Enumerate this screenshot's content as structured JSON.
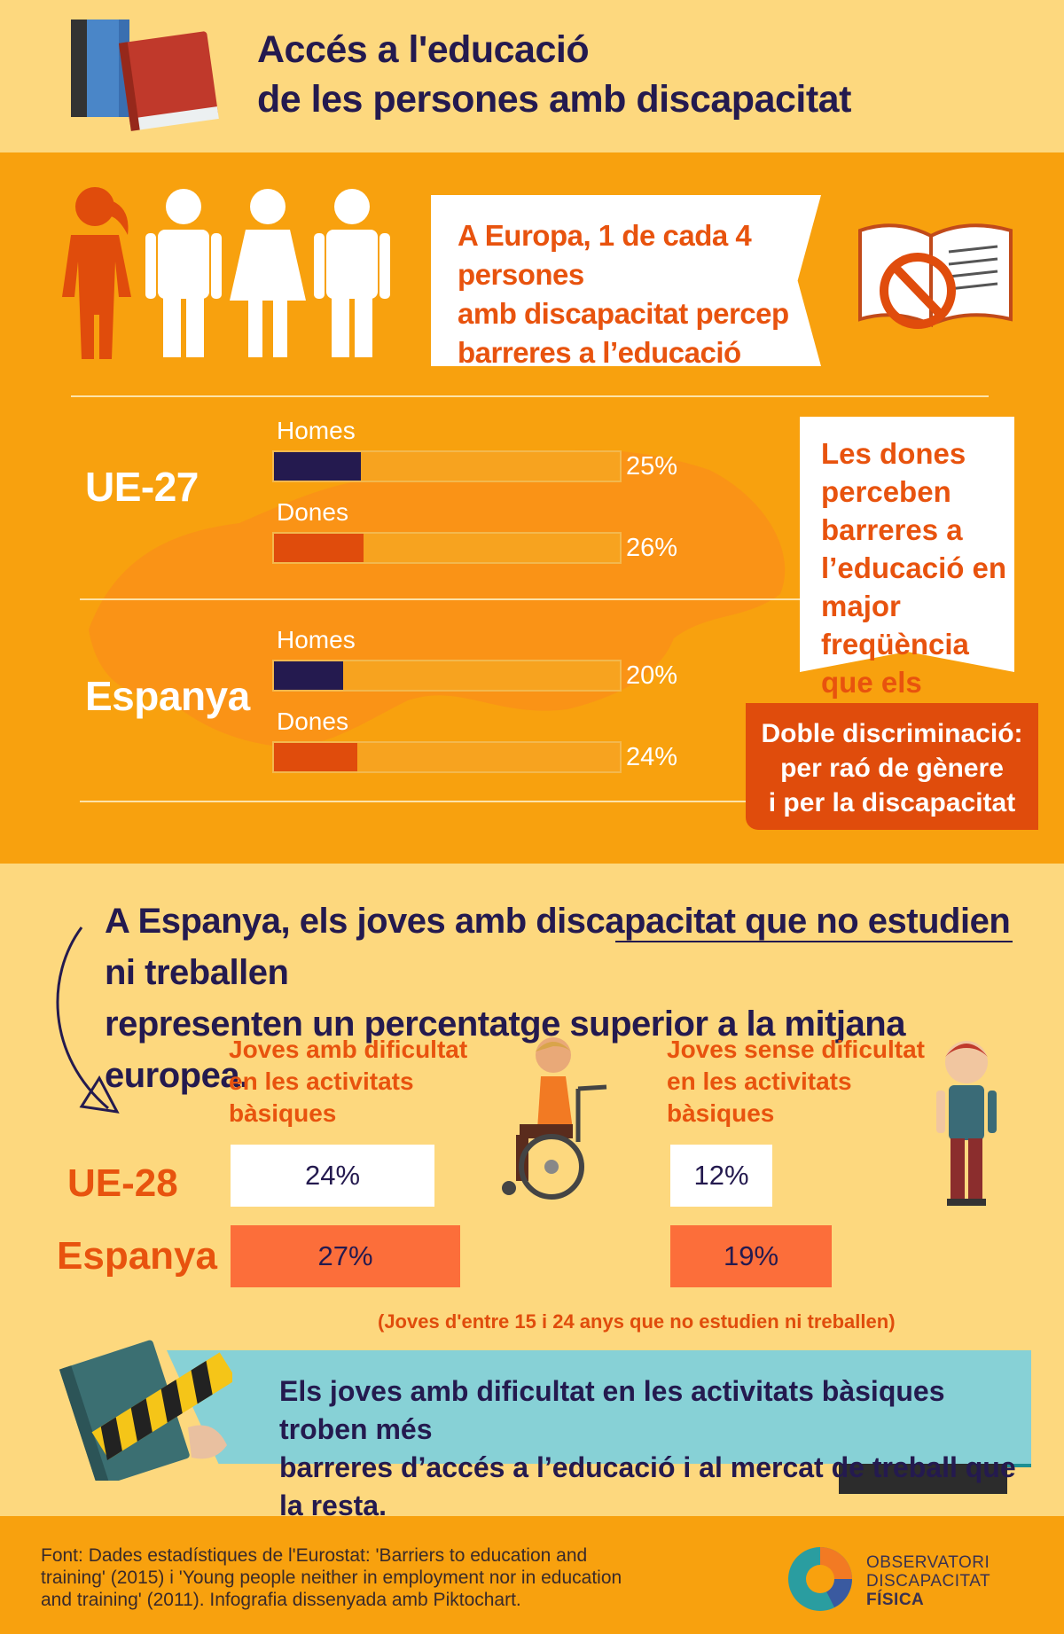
{
  "header": {
    "title_line1": "Accés a l'educació",
    "title_line2": "de les persones amb discapacitat"
  },
  "callout": {
    "line1": "A Europa, 1 de cada 4 persones",
    "line2": "amb discapacitat percep",
    "line3": "barreres a l’educació"
  },
  "note": {
    "lines": [
      "Les dones",
      "perceben",
      "barreres a",
      "l’educació en",
      "major freqüència",
      "que els homes"
    ]
  },
  "badge": {
    "lines": [
      "Doble discriminació:",
      "per raó de gènere",
      "i per la discapacitat"
    ]
  },
  "headline": {
    "part1": "A Espanya, els joves amb discapacitat",
    "underlined": " que no estudien ni treballen ",
    "part2": "representen un percentatge superior a la mitjana europea."
  },
  "section2": {
    "col1_head": [
      "Joves amb dificultat",
      "en les activitats",
      "bàsiques"
    ],
    "col2_head": [
      "Joves sense dificultat",
      "en les activitats",
      "bàsiques"
    ],
    "footnote": "(Joves d'entre 15 i 24 anys que no estudien ni treballen)"
  },
  "banner": {
    "line1": "Els joves amb dificultat en les activitats bàsiques troben més",
    "line2": "barreres d’accés a l’educació i al mercat de treball que la resta."
  },
  "footer": {
    "source_line1": "Font: Dades estadístiques de l'Eurostat: 'Barriers to education and",
    "source_line2": "training' (2015) i 'Young people neither in employment nor in education",
    "source_line3": "and training' (2011). Infografia dissenyada amb Piktochart.",
    "org_line1": "OBSERVATORI",
    "org_line2": "DISCAPACITAT",
    "org_line3": "FÍSICA"
  },
  "colors": {
    "homes": "#241a4f",
    "dones": "#e04c0c",
    "accent_orange": "#e8530e",
    "band": "#f8a10e",
    "background": "#fdd87e",
    "teal": "#87d1d6",
    "box_white": "#ffffff",
    "box_orange": "#fc6e3a"
  },
  "chart_data": [
    {
      "type": "bar",
      "orientation": "horizontal",
      "groups": [
        {
          "name": "UE-27",
          "bars": [
            {
              "label": "Homes",
              "value": 25,
              "value_label": "25%"
            },
            {
              "label": "Dones",
              "value": 26,
              "value_label": "26%"
            }
          ]
        },
        {
          "name": "Espanya",
          "bars": [
            {
              "label": "Homes",
              "value": 20,
              "value_label": "20%"
            },
            {
              "label": "Dones",
              "value": 24,
              "value_label": "24%"
            }
          ]
        }
      ],
      "xlim": [
        0,
        100
      ]
    },
    {
      "type": "bar",
      "orientation": "horizontal",
      "categories": [
        "UE-28",
        "Espanya"
      ],
      "series": [
        {
          "name": "Joves amb dificultat en les activitats bàsiques",
          "values": [
            24,
            27
          ],
          "value_labels": [
            "24%",
            "27%"
          ]
        },
        {
          "name": "Joves sense dificultat en les activitats bàsiques",
          "values": [
            12,
            19
          ],
          "value_labels": [
            "12%",
            "19%"
          ]
        }
      ]
    }
  ]
}
